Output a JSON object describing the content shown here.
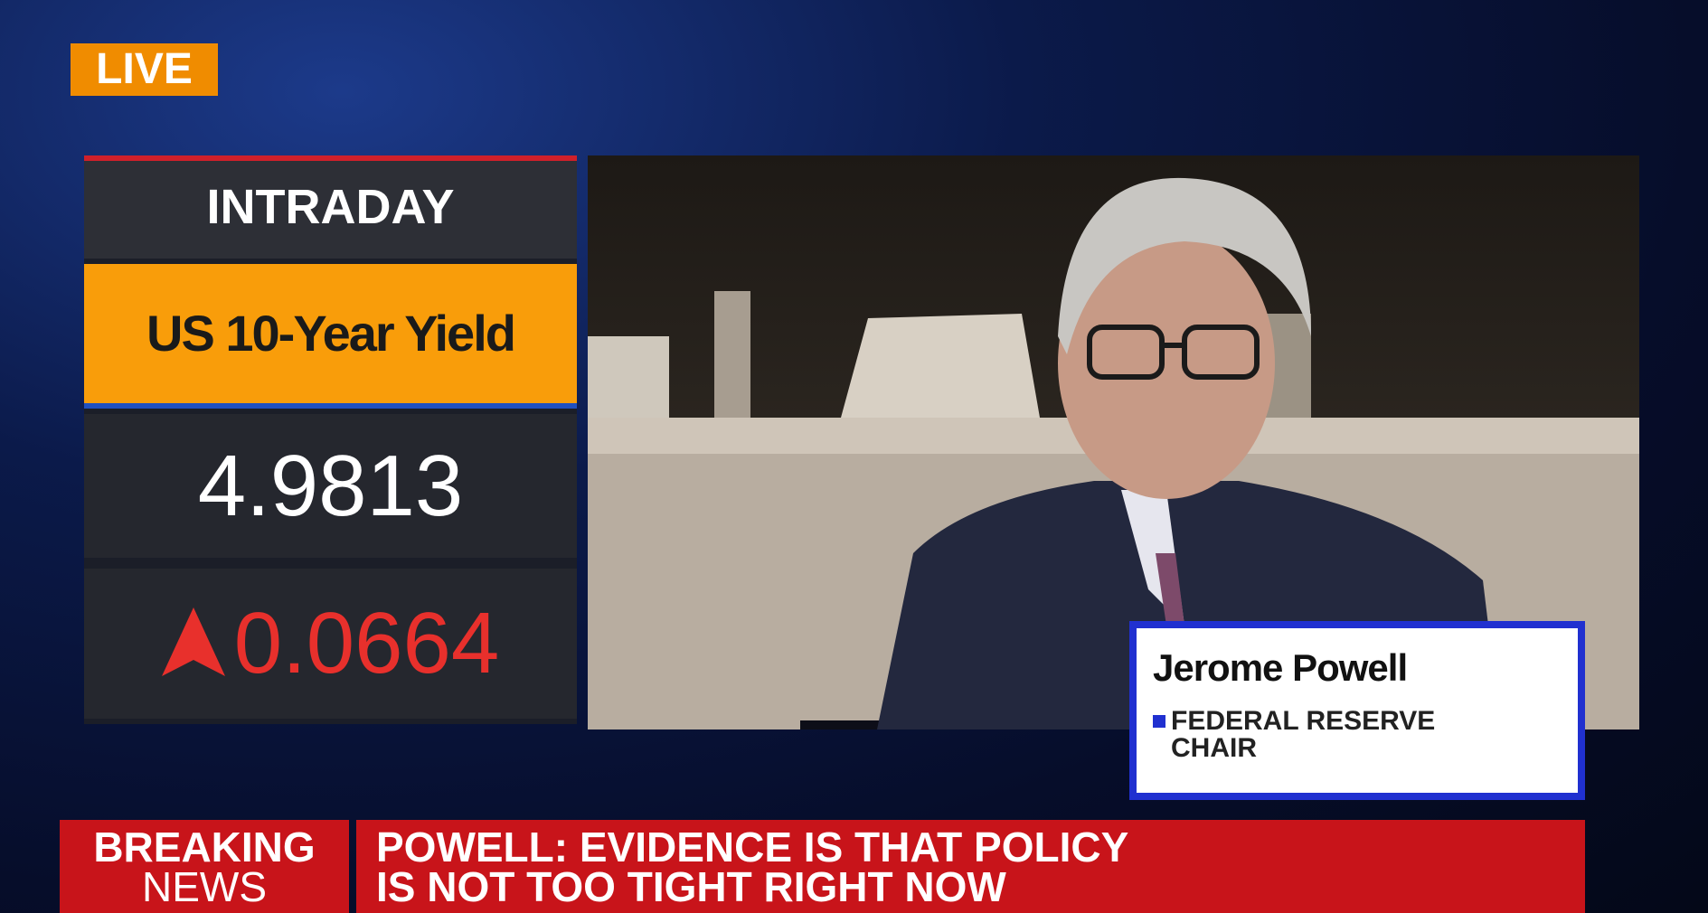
{
  "live_badge": "LIVE",
  "market_panel": {
    "header": "INTRADAY",
    "instrument": "US 10-Year Yield",
    "value": "4.9813",
    "change": "0.0664"
  },
  "lower_third": {
    "name": "Jerome Powell",
    "title_lines": [
      "FEDERAL RESERVE",
      "CHAIR"
    ]
  },
  "breaking_bar": {
    "label_lines": [
      "BREAKING",
      "NEWS"
    ],
    "headline_lines": [
      "POWELL: EVIDENCE IS THAT POLICY",
      "IS NOT TOO TIGHT RIGHT NOW"
    ]
  }
}
